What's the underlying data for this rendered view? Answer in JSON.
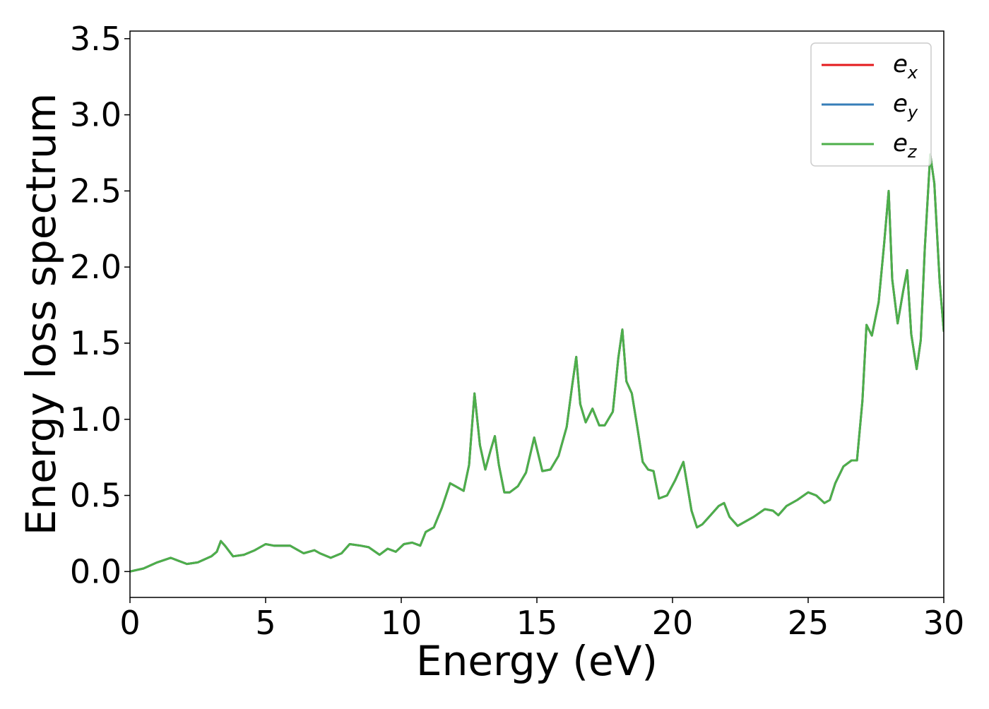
{
  "chart_data": {
    "type": "line",
    "title": "",
    "xlabel": "Energy (eV)",
    "ylabel": "Energy loss spectrum",
    "xlim": [
      0,
      30
    ],
    "ylim": [
      -0.17,
      3.55
    ],
    "xticks": [
      0,
      5,
      10,
      15,
      20,
      25,
      30
    ],
    "yticks": [
      0.0,
      0.5,
      1.0,
      1.5,
      2.0,
      2.5,
      3.0,
      3.5
    ],
    "xtick_labels": [
      "0",
      "5",
      "10",
      "15",
      "20",
      "25",
      "30"
    ],
    "ytick_labels": [
      "0.0",
      "0.5",
      "1.0",
      "1.5",
      "2.0",
      "2.5",
      "3.0",
      "3.5"
    ],
    "grid": false,
    "legend_position": "top-right",
    "series": [
      {
        "name": "e_x",
        "label_main": "e",
        "label_sub": "x",
        "color": "#e41a1c",
        "x": [
          0,
          0.5,
          1.0,
          1.5,
          1.8,
          2.1,
          2.5,
          3.0,
          3.2,
          3.35,
          3.5,
          3.8,
          4.2,
          4.6,
          5.0,
          5.3,
          5.6,
          5.9,
          6.2,
          6.4,
          6.8,
          7.0,
          7.4,
          7.8,
          8.1,
          8.5,
          8.8,
          9.2,
          9.5,
          9.8,
          10.1,
          10.4,
          10.7,
          10.9,
          11.2,
          11.5,
          11.8,
          12.0,
          12.3,
          12.5,
          12.7,
          12.9,
          13.1,
          13.3,
          13.45,
          13.6,
          13.8,
          14.0,
          14.3,
          14.6,
          14.9,
          15.2,
          15.5,
          15.8,
          16.1,
          16.3,
          16.45,
          16.6,
          16.8,
          17.05,
          17.3,
          17.5,
          17.8,
          18.0,
          18.15,
          18.3,
          18.5,
          18.7,
          18.9,
          19.1,
          19.3,
          19.5,
          19.8,
          20.1,
          20.4,
          20.7,
          20.9,
          21.1,
          21.4,
          21.7,
          21.9,
          22.1,
          22.4,
          22.7,
          23.0,
          23.4,
          23.7,
          23.9,
          24.2,
          24.6,
          25.0,
          25.3,
          25.6,
          25.8,
          26.0,
          26.3,
          26.6,
          26.8,
          27.0,
          27.15,
          27.35,
          27.6,
          27.8,
          27.97,
          28.1,
          28.3,
          28.5,
          28.65,
          28.8,
          29.0,
          29.15,
          29.3,
          29.5,
          29.65,
          29.85,
          30.0
        ],
        "y": [
          0.0,
          0.02,
          0.06,
          0.09,
          0.07,
          0.05,
          0.06,
          0.1,
          0.13,
          0.2,
          0.17,
          0.1,
          0.11,
          0.14,
          0.18,
          0.17,
          0.17,
          0.17,
          0.14,
          0.12,
          0.14,
          0.12,
          0.09,
          0.12,
          0.18,
          0.17,
          0.16,
          0.11,
          0.15,
          0.13,
          0.18,
          0.19,
          0.17,
          0.26,
          0.29,
          0.42,
          0.58,
          0.56,
          0.53,
          0.7,
          1.17,
          0.83,
          0.67,
          0.8,
          0.89,
          0.7,
          0.52,
          0.52,
          0.56,
          0.65,
          0.88,
          0.66,
          0.67,
          0.76,
          0.95,
          1.22,
          1.41,
          1.1,
          0.98,
          1.07,
          0.96,
          0.96,
          1.05,
          1.4,
          1.59,
          1.25,
          1.17,
          0.95,
          0.72,
          0.67,
          0.66,
          0.48,
          0.5,
          0.6,
          0.72,
          0.4,
          0.29,
          0.31,
          0.37,
          0.43,
          0.45,
          0.36,
          0.3,
          0.33,
          0.36,
          0.41,
          0.4,
          0.37,
          0.43,
          0.47,
          0.52,
          0.5,
          0.45,
          0.47,
          0.58,
          0.69,
          0.73,
          0.73,
          1.12,
          1.62,
          1.55,
          1.77,
          2.15,
          2.5,
          1.92,
          1.63,
          1.84,
          1.98,
          1.56,
          1.33,
          1.52,
          2.12,
          2.74,
          2.55,
          1.9,
          1.58
        ]
      },
      {
        "name": "e_y",
        "label_main": "e",
        "label_sub": "y",
        "color": "#377eb8",
        "x": [
          0,
          0.5,
          1.0,
          1.5,
          1.8,
          2.1,
          2.5,
          3.0,
          3.2,
          3.35,
          3.5,
          3.8,
          4.2,
          4.6,
          5.0,
          5.3,
          5.6,
          5.9,
          6.2,
          6.4,
          6.8,
          7.0,
          7.4,
          7.8,
          8.1,
          8.5,
          8.8,
          9.2,
          9.5,
          9.8,
          10.1,
          10.4,
          10.7,
          10.9,
          11.2,
          11.5,
          11.8,
          12.0,
          12.3,
          12.5,
          12.7,
          12.9,
          13.1,
          13.3,
          13.45,
          13.6,
          13.8,
          14.0,
          14.3,
          14.6,
          14.9,
          15.2,
          15.5,
          15.8,
          16.1,
          16.3,
          16.45,
          16.6,
          16.8,
          17.05,
          17.3,
          17.5,
          17.8,
          18.0,
          18.15,
          18.3,
          18.5,
          18.7,
          18.9,
          19.1,
          19.3,
          19.5,
          19.8,
          20.1,
          20.4,
          20.7,
          20.9,
          21.1,
          21.4,
          21.7,
          21.9,
          22.1,
          22.4,
          22.7,
          23.0,
          23.4,
          23.7,
          23.9,
          24.2,
          24.6,
          25.0,
          25.3,
          25.6,
          25.8,
          26.0,
          26.3,
          26.6,
          26.8,
          27.0,
          27.15,
          27.35,
          27.6,
          27.8,
          27.97,
          28.1,
          28.3,
          28.5,
          28.65,
          28.8,
          29.0,
          29.15,
          29.3,
          29.5,
          29.65,
          29.85,
          30.0
        ],
        "y": [
          0.0,
          0.02,
          0.06,
          0.09,
          0.07,
          0.05,
          0.06,
          0.1,
          0.13,
          0.2,
          0.17,
          0.1,
          0.11,
          0.14,
          0.18,
          0.17,
          0.17,
          0.17,
          0.14,
          0.12,
          0.14,
          0.12,
          0.09,
          0.12,
          0.18,
          0.17,
          0.16,
          0.11,
          0.15,
          0.13,
          0.18,
          0.19,
          0.17,
          0.26,
          0.29,
          0.42,
          0.58,
          0.56,
          0.53,
          0.7,
          1.17,
          0.83,
          0.67,
          0.8,
          0.89,
          0.7,
          0.52,
          0.52,
          0.56,
          0.65,
          0.88,
          0.66,
          0.67,
          0.76,
          0.95,
          1.22,
          1.41,
          1.1,
          0.98,
          1.07,
          0.96,
          0.96,
          1.05,
          1.4,
          1.59,
          1.25,
          1.17,
          0.95,
          0.72,
          0.67,
          0.66,
          0.48,
          0.5,
          0.6,
          0.72,
          0.4,
          0.29,
          0.31,
          0.37,
          0.43,
          0.45,
          0.36,
          0.3,
          0.33,
          0.36,
          0.41,
          0.4,
          0.37,
          0.43,
          0.47,
          0.52,
          0.5,
          0.45,
          0.47,
          0.58,
          0.69,
          0.73,
          0.73,
          1.12,
          1.62,
          1.55,
          1.77,
          2.15,
          2.5,
          1.92,
          1.63,
          1.84,
          1.98,
          1.56,
          1.33,
          1.52,
          2.12,
          2.74,
          2.55,
          1.9,
          1.58
        ]
      },
      {
        "name": "e_z",
        "label_main": "e",
        "label_sub": "z",
        "color": "#4daf4a",
        "x": [
          0,
          0.5,
          1.0,
          1.5,
          1.8,
          2.1,
          2.5,
          3.0,
          3.2,
          3.35,
          3.5,
          3.8,
          4.2,
          4.6,
          5.0,
          5.3,
          5.6,
          5.9,
          6.2,
          6.4,
          6.8,
          7.0,
          7.4,
          7.8,
          8.1,
          8.5,
          8.8,
          9.2,
          9.5,
          9.8,
          10.1,
          10.4,
          10.7,
          10.9,
          11.2,
          11.5,
          11.8,
          12.0,
          12.3,
          12.5,
          12.7,
          12.9,
          13.1,
          13.3,
          13.45,
          13.6,
          13.8,
          14.0,
          14.3,
          14.6,
          14.9,
          15.2,
          15.5,
          15.8,
          16.1,
          16.3,
          16.45,
          16.6,
          16.8,
          17.05,
          17.3,
          17.5,
          17.8,
          18.0,
          18.15,
          18.3,
          18.5,
          18.7,
          18.9,
          19.1,
          19.3,
          19.5,
          19.8,
          20.1,
          20.4,
          20.7,
          20.9,
          21.1,
          21.4,
          21.7,
          21.9,
          22.1,
          22.4,
          22.7,
          23.0,
          23.4,
          23.7,
          23.9,
          24.2,
          24.6,
          25.0,
          25.3,
          25.6,
          25.8,
          26.0,
          26.3,
          26.6,
          26.8,
          27.0,
          27.15,
          27.35,
          27.6,
          27.8,
          27.97,
          28.1,
          28.3,
          28.5,
          28.65,
          28.8,
          29.0,
          29.15,
          29.3,
          29.5,
          29.65,
          29.85,
          30.0
        ],
        "y": [
          0.0,
          0.02,
          0.06,
          0.09,
          0.07,
          0.05,
          0.06,
          0.1,
          0.13,
          0.2,
          0.17,
          0.1,
          0.11,
          0.14,
          0.18,
          0.17,
          0.17,
          0.17,
          0.14,
          0.12,
          0.14,
          0.12,
          0.09,
          0.12,
          0.18,
          0.17,
          0.16,
          0.11,
          0.15,
          0.13,
          0.18,
          0.19,
          0.17,
          0.26,
          0.29,
          0.42,
          0.58,
          0.56,
          0.53,
          0.7,
          1.17,
          0.83,
          0.67,
          0.8,
          0.89,
          0.7,
          0.52,
          0.52,
          0.56,
          0.65,
          0.88,
          0.66,
          0.67,
          0.76,
          0.95,
          1.22,
          1.41,
          1.1,
          0.98,
          1.07,
          0.96,
          0.96,
          1.05,
          1.4,
          1.59,
          1.25,
          1.17,
          0.95,
          0.72,
          0.67,
          0.66,
          0.48,
          0.5,
          0.6,
          0.72,
          0.4,
          0.29,
          0.31,
          0.37,
          0.43,
          0.45,
          0.36,
          0.3,
          0.33,
          0.36,
          0.41,
          0.4,
          0.37,
          0.43,
          0.47,
          0.52,
          0.5,
          0.45,
          0.47,
          0.58,
          0.69,
          0.73,
          0.73,
          1.12,
          1.62,
          1.55,
          1.77,
          2.15,
          2.5,
          1.92,
          1.63,
          1.84,
          1.98,
          1.56,
          1.33,
          1.52,
          2.12,
          2.74,
          2.55,
          1.9,
          1.58
        ]
      }
    ]
  }
}
